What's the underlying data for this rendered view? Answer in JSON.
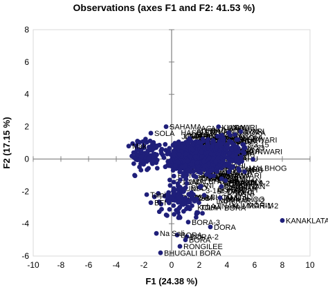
{
  "chart_data": {
    "type": "scatter",
    "title": "Observations (axes F1 and F2: 41.53 %)",
    "xlabel": "F1 (24.38 %)",
    "ylabel": "F2 (17.15 %)",
    "xlim": [
      -10,
      10
    ],
    "ylim": [
      -6,
      8
    ],
    "x_ticks": [
      -10,
      -8,
      -6,
      -4,
      -2,
      0,
      2,
      4,
      6,
      8,
      10
    ],
    "y_ticks": [
      -6,
      -4,
      -2,
      0,
      2,
      4,
      6,
      8
    ],
    "x_tick_labels": [
      "-10",
      "-8",
      "-6",
      "-4",
      "-2",
      "0",
      "2",
      "4",
      "6",
      "8",
      "10"
    ],
    "y_tick_labels": [
      "-6",
      "-4",
      "-2",
      "0",
      "2",
      "4",
      "6",
      "8"
    ],
    "grid": false,
    "point_color": "#1f1f7a",
    "axis_color": "#7f7f7f",
    "labeled_points": [
      {
        "label": "KANAKLATA",
        "x": 8.0,
        "y": -3.8
      },
      {
        "label": "BHUGALI BORA",
        "x": -0.8,
        "y": -5.8
      },
      {
        "label": "RONGILEE",
        "x": 0.6,
        "y": -5.4
      },
      {
        "label": "BORA",
        "x": 1.0,
        "y": -5.0
      },
      {
        "label": "BORA-2",
        "x": 1.1,
        "y": -4.8
      },
      {
        "label": "Na Sali",
        "x": -1.1,
        "y": -4.6
      },
      {
        "label": "BORA",
        "x": 0.4,
        "y": -4.7
      },
      {
        "label": "BORA-3",
        "x": 1.2,
        "y": -3.9
      },
      {
        "label": "DORA",
        "x": 2.8,
        "y": -4.2
      },
      {
        "label": "SAHAMA",
        "x": -0.4,
        "y": 2.0
      },
      {
        "label": "SOLA",
        "x": -1.5,
        "y": 1.6
      },
      {
        "label": "Mak",
        "x": -3.1,
        "y": 0.8
      },
      {
        "label": "3-3-15",
        "x": 5.2,
        "y": 0.9
      },
      {
        "label": "KUNWARI",
        "x": 4.8,
        "y": 1.2
      },
      {
        "label": "1-22-",
        "x": 5.0,
        "y": 1.7
      },
      {
        "label": "DANI-I",
        "x": 3.6,
        "y": -1.7
      },
      {
        "label": "DANI-II",
        "x": 3.5,
        "y": -2.4
      },
      {
        "label": "Taipi",
        "x": -1.8,
        "y": -2.2
      },
      {
        "label": "BFI",
        "x": -1.5,
        "y": -2.7
      }
    ],
    "clusters": [
      {
        "cx": 1.8,
        "cy": 0.1,
        "sx": 1.6,
        "sy": 0.75,
        "n": 700
      },
      {
        "cx": 0.6,
        "cy": -2.3,
        "sx": 1.2,
        "sy": 1.0,
        "n": 110
      },
      {
        "cx": -1.8,
        "cy": 0.3,
        "sx": 0.9,
        "sy": 0.9,
        "n": 90
      },
      {
        "cx": 4.0,
        "cy": 0.3,
        "sx": 1.1,
        "sy": 1.0,
        "n": 140
      }
    ],
    "overlay_labels": [
      "KUMRAR-1-2",
      "KUNWARI",
      "DHODIA",
      "HASBI",
      "LUNIA",
      "LAJINAN",
      "TOHA",
      "BORA",
      "DANI",
      "3-1-2",
      "RONGA",
      "SALI",
      "MOHIM",
      "KOLA",
      "JOHA",
      "AGNI",
      "BAO",
      "DHAN",
      "AHU",
      "BODAH",
      "KHAWA",
      "LAHI",
      "BHOG",
      "MALBHOG"
    ]
  }
}
